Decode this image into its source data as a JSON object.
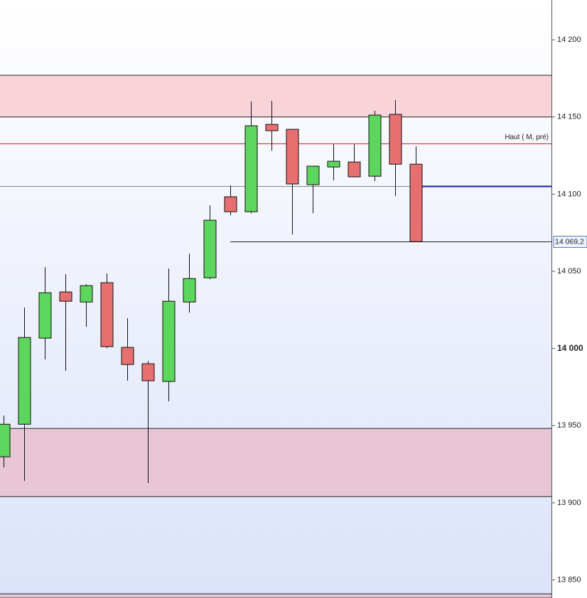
{
  "chart_data": {
    "type": "candlestick",
    "open": [
      13929.8,
      13950.9,
      14006.7,
      14036.6,
      14030.1,
      14042.6,
      14000.7,
      13990.1,
      13978.6,
      14030.1,
      14045.8,
      14098.3,
      14088.6,
      14145.2,
      14142.0,
      14106.1,
      14117.6,
      14120.8,
      14111.6,
      14151.7,
      14119.4
    ],
    "high": [
      13956.5,
      14026.5,
      14052.7,
      14048.1,
      14041.7,
      14048.6,
      14019.6,
      13991.9,
      14051.8,
      14061.4,
      14092.7,
      14105.6,
      14160.0,
      14160.4,
      14142.0,
      14118.1,
      14132.3,
      14132.3,
      14154.0,
      14160.9,
      14131.0
    ],
    "low": [
      13922.9,
      13914.2,
      13992.9,
      13985.5,
      14014.0,
      14000.2,
      13979.1,
      13912.8,
      13965.7,
      14023.2,
      14044.9,
      14086.3,
      14087.7,
      14128.2,
      14073.9,
      14087.7,
      14108.9,
      14111.2,
      14108.4,
      14098.7,
      14069.2
    ],
    "close": [
      13950.9,
      14007.1,
      14036.1,
      14030.6,
      14040.7,
      14001.2,
      13989.6,
      13979.1,
      14030.6,
      14045.3,
      14083.1,
      14088.6,
      14144.3,
      14141.1,
      14106.6,
      14118.1,
      14121.3,
      14111.2,
      14151.2,
      14119.4,
      14069.2
    ],
    "up_color": "#5cd65c",
    "down_color": "#e86f6f",
    "ylim": [
      13838.3,
      14225.8
    ],
    "yticks": [
      {
        "value": 13850,
        "label": "13 850"
      },
      {
        "value": 13900,
        "label": "13 900"
      },
      {
        "value": 13950,
        "label": "13 950"
      },
      {
        "value": 14000,
        "label": "14 000",
        "bold": true
      },
      {
        "value": 14050,
        "label": "14 050"
      },
      {
        "value": 14100,
        "label": "14 100"
      },
      {
        "value": 14150,
        "label": "14 150"
      },
      {
        "value": 14200,
        "label": "14 200"
      }
    ],
    "zones": [
      {
        "from": 14150,
        "to": 14177.0,
        "color": "#f9d3da"
      },
      {
        "from": 13904.0,
        "to": 13948.2,
        "color": "#e8c6d6"
      },
      {
        "from": 13838.3,
        "to": 13841.0,
        "color": "#e8c6d6"
      }
    ],
    "lines": [
      {
        "value": 14132.8,
        "color": "#d22020",
        "label": "Haut ( M, pré)"
      },
      {
        "value": 14105.2,
        "color": "#888888"
      }
    ],
    "level": {
      "value": 14105.2,
      "color": "#1a1aa0"
    },
    "last_price": {
      "value": 14069.2,
      "label": "14 069,2"
    }
  }
}
